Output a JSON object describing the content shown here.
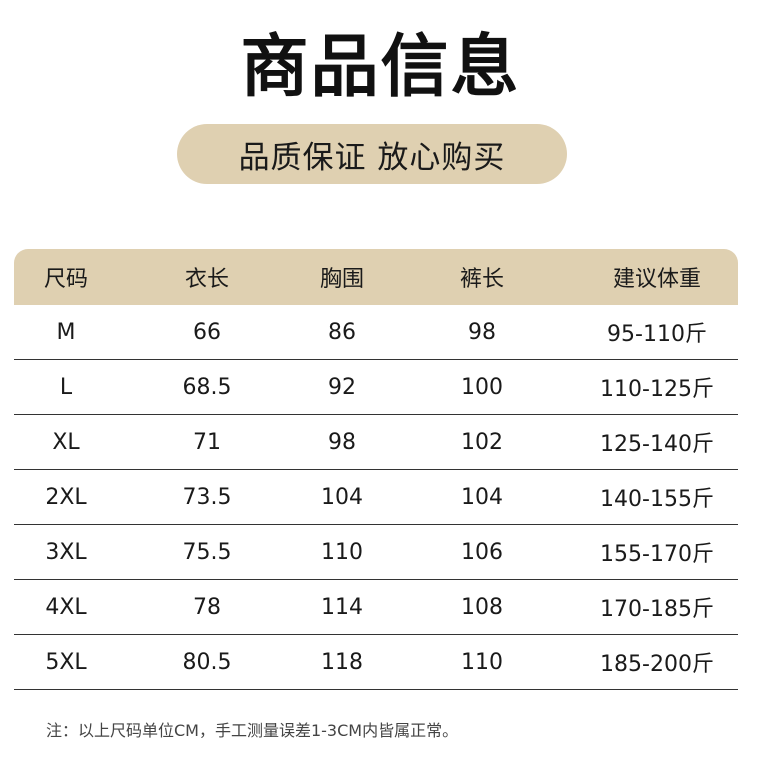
{
  "title": "商品信息",
  "subtitle": "品质保证 放心购买",
  "table": {
    "headers": [
      "尺码",
      "衣长",
      "胸围",
      "裤长",
      "建议体重"
    ],
    "rows": [
      [
        "M",
        "66",
        "86",
        "98",
        "95-110斤"
      ],
      [
        "L",
        "68.5",
        "92",
        "100",
        "110-125斤"
      ],
      [
        "XL",
        "71",
        "98",
        "102",
        "125-140斤"
      ],
      [
        "2XL",
        "73.5",
        "104",
        "104",
        "140-155斤"
      ],
      [
        "3XL",
        "75.5",
        "110",
        "106",
        "155-170斤"
      ],
      [
        "4XL",
        "78",
        "114",
        "108",
        "170-185斤"
      ],
      [
        "5XL",
        "80.5",
        "118",
        "110",
        "185-200斤"
      ]
    ]
  },
  "note": "注：以上尺码单位CM，手工测量误差1-3CM内皆属正常。",
  "colors": {
    "accent": "#dfd0b1",
    "text": "#1a1a1a",
    "divider": "#333333"
  }
}
